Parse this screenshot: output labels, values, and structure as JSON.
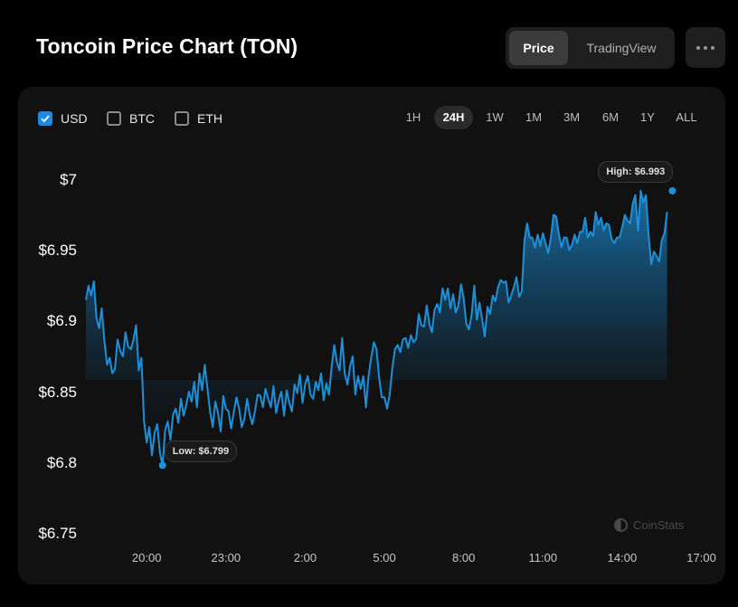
{
  "page": {
    "title": "Toncoin Price Chart (TON)",
    "view_toggle": {
      "price_label": "Price",
      "tradingview_label": "TradingView",
      "selected": "Price"
    },
    "more_label": "more options"
  },
  "currencies": [
    {
      "label": "USD",
      "checked": true
    },
    {
      "label": "BTC",
      "checked": false
    },
    {
      "label": "ETH",
      "checked": false
    }
  ],
  "periods": [
    "1H",
    "24H",
    "1W",
    "1M",
    "3M",
    "6M",
    "1Y",
    "ALL"
  ],
  "active_period": "24H",
  "watermark": "CoinStats",
  "colors": {
    "line": "#1e90d8",
    "background": "#000000",
    "card": "#111111",
    "accent": "#1e88e5"
  },
  "chart_data": {
    "type": "area",
    "title": "",
    "xlabel": "",
    "ylabel": "",
    "currency": "USD",
    "ylim": [
      6.75,
      7.0
    ],
    "y_ticks": [
      7.0,
      6.95,
      6.9,
      6.85,
      6.8,
      6.75
    ],
    "y_tick_labels": [
      "$7",
      "$6.95",
      "$6.9",
      "$6.85",
      "$6.8",
      "$6.75"
    ],
    "x_tick_labels": [
      "20:00",
      "23:00",
      "2:00",
      "5:00",
      "8:00",
      "11:00",
      "14:00",
      "17:00"
    ],
    "x_tick_hours": [
      0,
      3,
      6,
      9,
      12,
      15,
      18,
      21
    ],
    "x_range_hours": [
      -2.3,
      21.7
    ],
    "grid": false,
    "series": [
      {
        "values_x_hours": [
          -2.3,
          -2.2,
          -2.1,
          -2.0,
          -1.9,
          -1.8,
          -1.7,
          -1.6,
          -1.5,
          -1.4,
          -1.3,
          -1.2,
          -1.1,
          -1.0,
          -0.9,
          -0.8,
          -0.7,
          -0.6,
          -0.5,
          -0.4,
          -0.3,
          -0.2,
          -0.1,
          0.0,
          0.1,
          0.2,
          0.3,
          0.4,
          0.5,
          0.6,
          0.7,
          0.8,
          0.9,
          1.0,
          1.1,
          1.2,
          1.3,
          1.4,
          1.5,
          1.6,
          1.7,
          1.8,
          1.9,
          2.0,
          2.1,
          2.2,
          2.3,
          2.4,
          2.5,
          2.6,
          2.7,
          2.8,
          2.9,
          3.0,
          3.1,
          3.2,
          3.3,
          3.4,
          3.5,
          3.6,
          3.7,
          3.8,
          3.9,
          4.0,
          4.1,
          4.2,
          4.3,
          4.4,
          4.5,
          4.6,
          4.7,
          4.8,
          4.9,
          5.0,
          5.1,
          5.2,
          5.3,
          5.4,
          5.5,
          5.6,
          5.7,
          5.8,
          5.9,
          6.0,
          6.1,
          6.2,
          6.3,
          6.4,
          6.5,
          6.6,
          6.7,
          6.8,
          6.9,
          7.0,
          7.1,
          7.2,
          7.3,
          7.4,
          7.5,
          7.6,
          7.7,
          7.8,
          7.9,
          8.0,
          8.1,
          8.2,
          8.3,
          8.4,
          8.5,
          8.6,
          8.7,
          8.8,
          8.9,
          9.0,
          9.1,
          9.2,
          9.3,
          9.4,
          9.5,
          9.6,
          9.7,
          9.8,
          9.9,
          10.0,
          10.1,
          10.2,
          10.3,
          10.4,
          10.5,
          10.6,
          10.7,
          10.8,
          10.9,
          11.0,
          11.1,
          11.2,
          11.3,
          11.4,
          11.5,
          11.6,
          11.7,
          11.8,
          11.9,
          12.0,
          12.1,
          12.2,
          12.3,
          12.4,
          12.5,
          12.6,
          12.7,
          12.8,
          12.9,
          13.0,
          13.1,
          13.2,
          13.3,
          13.4,
          13.5,
          13.6,
          13.7,
          13.8,
          13.9,
          14.0,
          14.1,
          14.2,
          14.3,
          14.4,
          14.5,
          14.6,
          14.7,
          14.8,
          14.9,
          15.0,
          15.1,
          15.2,
          15.3,
          15.4,
          15.5,
          15.6,
          15.7,
          15.8,
          15.9,
          16.0,
          16.1,
          16.2,
          16.3,
          16.4,
          16.5,
          16.6,
          16.7,
          16.8,
          16.9,
          17.0,
          17.1,
          17.2,
          17.3,
          17.4,
          17.5,
          17.6,
          17.7,
          17.8,
          17.9,
          18.0,
          18.1,
          18.2,
          18.3,
          18.4,
          18.5,
          18.6,
          18.7,
          18.8,
          18.9,
          19.0,
          19.1,
          19.2,
          19.3,
          19.4,
          19.5,
          19.6,
          19.7,
          19.8,
          19.9,
          20.0,
          20.1,
          20.2,
          20.3,
          20.4,
          20.5,
          20.6,
          20.7,
          20.8,
          20.9,
          21.0,
          21.1,
          21.2,
          21.3,
          21.4,
          21.5,
          21.6,
          21.7
        ],
        "values": [
          6.916,
          6.926,
          6.919,
          6.929,
          6.903,
          6.896,
          6.91,
          6.887,
          6.87,
          6.875,
          6.864,
          6.867,
          6.888,
          6.88,
          6.876,
          6.893,
          6.883,
          6.881,
          6.888,
          6.898,
          6.866,
          6.875,
          6.83,
          6.815,
          6.826,
          6.806,
          6.822,
          6.828,
          6.808,
          6.799,
          6.824,
          6.83,
          6.817,
          6.835,
          6.839,
          6.829,
          6.846,
          6.834,
          6.842,
          6.851,
          6.844,
          6.858,
          6.84,
          6.864,
          6.852,
          6.87,
          6.853,
          6.837,
          6.826,
          6.844,
          6.836,
          6.823,
          6.848,
          6.839,
          6.837,
          6.825,
          6.837,
          6.847,
          6.839,
          6.826,
          6.832,
          6.846,
          6.835,
          6.828,
          6.837,
          6.849,
          6.848,
          6.84,
          6.853,
          6.846,
          6.84,
          6.855,
          6.836,
          6.845,
          6.851,
          6.834,
          6.852,
          6.843,
          6.837,
          6.856,
          6.85,
          6.863,
          6.843,
          6.856,
          6.862,
          6.849,
          6.846,
          6.858,
          6.852,
          6.864,
          6.845,
          6.857,
          6.849,
          6.868,
          6.884,
          6.872,
          6.866,
          6.889,
          6.864,
          6.856,
          6.869,
          6.876,
          6.849,
          6.862,
          6.853,
          6.862,
          6.84,
          6.862,
          6.875,
          6.886,
          6.881,
          6.861,
          6.847,
          6.847,
          6.839,
          6.849,
          6.868,
          6.881,
          6.884,
          6.879,
          6.888,
          6.889,
          6.882,
          6.891,
          6.886,
          6.888,
          6.906,
          6.898,
          6.897,
          6.912,
          6.899,
          6.893,
          6.909,
          6.913,
          6.907,
          6.924,
          6.916,
          6.924,
          6.91,
          6.92,
          6.907,
          6.912,
          6.927,
          6.917,
          6.899,
          6.895,
          6.905,
          6.926,
          6.902,
          6.914,
          6.902,
          6.89,
          6.911,
          6.906,
          6.919,
          6.915,
          6.925,
          6.93,
          6.928,
          6.929,
          6.914,
          6.919,
          6.925,
          6.932,
          6.918,
          6.922,
          6.958,
          6.97,
          6.96,
          6.96,
          6.953,
          6.962,
          6.954,
          6.963,
          6.956,
          6.949,
          6.96,
          6.976,
          6.975,
          6.963,
          6.953,
          6.96,
          6.96,
          6.951,
          6.955,
          6.962,
          6.956,
          6.964,
          6.964,
          6.974,
          6.96,
          6.964,
          6.961,
          6.978,
          6.969,
          6.974,
          6.965,
          6.97,
          6.969,
          6.959,
          6.956,
          6.96,
          6.96,
          6.967,
          6.976,
          6.972,
          6.97,
          6.984,
          6.99,
          6.965,
          6.993,
          6.985,
          6.99,
          6.962,
          6.941,
          6.95,
          6.947,
          6.943,
          6.958,
          6.963,
          6.978
        ]
      }
    ],
    "annotations": [
      {
        "label": "High: $6.993",
        "x_hour": 19.9,
        "value": 6.993
      },
      {
        "label": "Low: $6.799",
        "x_hour": 0.6,
        "value": 6.799
      }
    ]
  }
}
